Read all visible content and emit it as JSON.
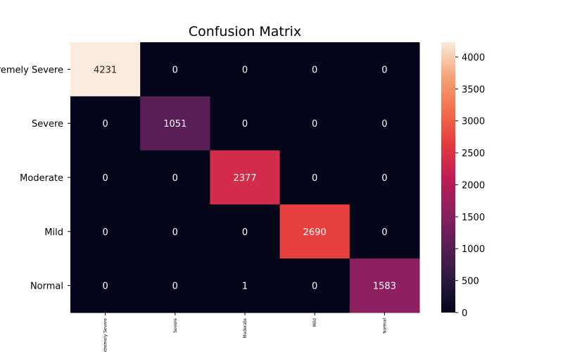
{
  "chart_data": {
    "type": "heatmap",
    "title": "Confusion Matrix",
    "xlabel": "",
    "ylabel": "",
    "row_labels": [
      "Extremely Severe",
      "Severe",
      "Moderate",
      "Mild",
      "Normal"
    ],
    "col_labels": [
      "Extremely Severe",
      "Severe",
      "Moderate",
      "Mild",
      "Normal"
    ],
    "values": [
      [
        4231,
        0,
        0,
        0,
        0
      ],
      [
        0,
        1051,
        0,
        0,
        0
      ],
      [
        0,
        0,
        2377,
        0,
        0
      ],
      [
        0,
        0,
        0,
        2690,
        0
      ],
      [
        0,
        0,
        1,
        0,
        1583
      ]
    ],
    "colormap": "rocket",
    "color_range": [
      0,
      4231
    ],
    "colorbar_ticks": [
      0,
      500,
      1000,
      1500,
      2000,
      2500,
      3000,
      3500,
      4000
    ],
    "grid": false,
    "legend": "colorbar-right"
  }
}
